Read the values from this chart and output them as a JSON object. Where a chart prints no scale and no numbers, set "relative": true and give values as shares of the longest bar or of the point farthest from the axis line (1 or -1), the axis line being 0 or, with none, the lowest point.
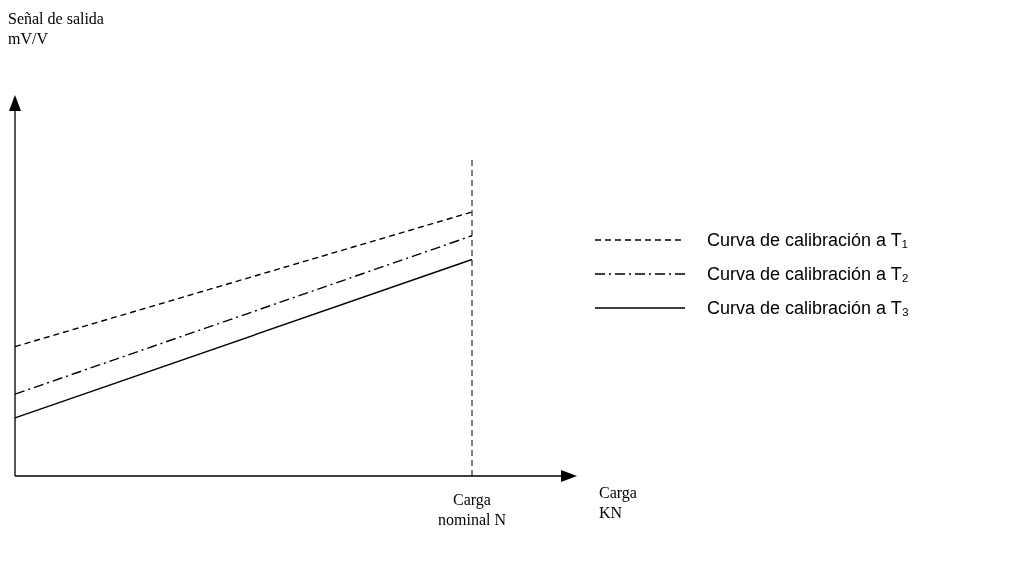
{
  "chart_data": {
    "type": "line",
    "relative": true,
    "xlabel": "Carga KN",
    "categories": [
      null,
      null
    ],
    "series": [
      {
        "name": "Curva de calibración a T₁",
        "color": "#000000",
        "line_style": "dashed",
        "values": [
          0.49,
          1
        ]
      },
      {
        "name": "Curva de calibración a T₂",
        "color": "#000000",
        "line_style": "dashdot",
        "values": [
          0.31,
          0.91
        ]
      },
      {
        "name": "Curva de calibración a T₃",
        "color": "#000000",
        "line_style": "solid",
        "values": [
          0.22,
          0.82
        ]
      }
    ],
    "annotations": [
      "Señal de salida mV/V",
      "Carga nominal N"
    ],
    "legend": "right",
    "marker": "none"
  }
}
